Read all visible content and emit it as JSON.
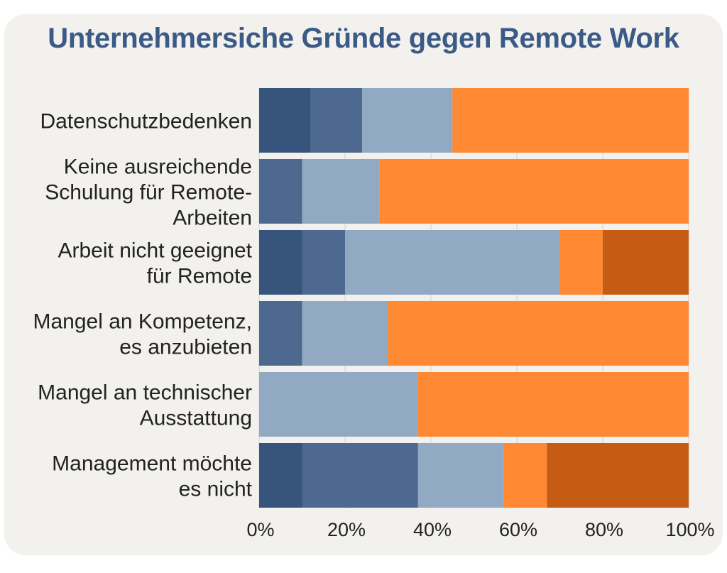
{
  "chart_data": {
    "type": "bar",
    "orientation": "horizontal",
    "stacked": true,
    "percent": true,
    "title": "Unternehmersiche Gründe gegen Remote Work",
    "xlabel": "",
    "ylabel": "",
    "xlim": [
      0,
      100
    ],
    "x_ticks": [
      "0%",
      "20%",
      "40%",
      "60%",
      "80%",
      "100%"
    ],
    "grid": true,
    "legend": null,
    "categories": [
      [
        "Datenschutzbedenken"
      ],
      [
        "Keine ausreichende",
        "Schulung für Remote-",
        "Arbeiten"
      ],
      [
        "Arbeit nicht geeignet",
        "für Remote"
      ],
      [
        "Mangel an Kompetenz,",
        "es anzubieten"
      ],
      [
        "Mangel an technischer",
        "Ausstattung"
      ],
      [
        "Management möchte",
        "es nicht"
      ]
    ],
    "series": [
      {
        "color": "#37547d",
        "values": [
          12,
          0,
          10,
          0,
          0,
          10
        ]
      },
      {
        "color": "#4e6990",
        "values": [
          12,
          10,
          10,
          10,
          0,
          27
        ]
      },
      {
        "color": "#91a9c3",
        "values": [
          21,
          18,
          50,
          20,
          37,
          20
        ]
      },
      {
        "color": "#ff8833",
        "values": [
          55,
          72,
          10,
          70,
          63,
          10
        ]
      },
      {
        "color": "#c55c14",
        "values": [
          0,
          0,
          20,
          0,
          0,
          33
        ]
      }
    ]
  }
}
